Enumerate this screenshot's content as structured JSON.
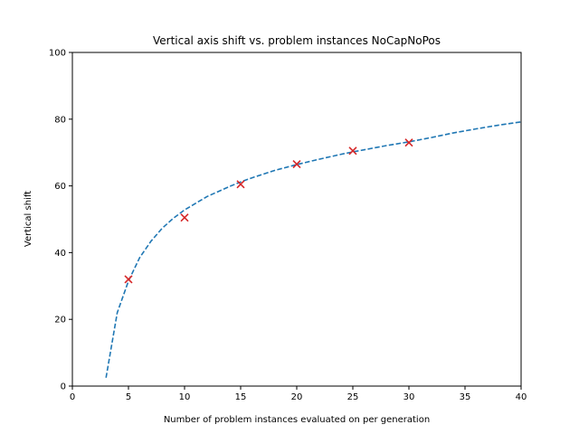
{
  "chart_data": {
    "type": "scatter",
    "title": "Vertical axis shift vs. problem instances NoCapNoPos",
    "xlabel": "Number of problem instances evaluated on per generation",
    "ylabel": "Vertical shift",
    "xlim": [
      0,
      40
    ],
    "ylim": [
      0,
      100
    ],
    "xticks": [
      0,
      5,
      10,
      15,
      20,
      25,
      30,
      35,
      40
    ],
    "yticks": [
      0,
      20,
      40,
      60,
      80,
      100
    ],
    "grid": false,
    "series": [
      {
        "kind": "scatter",
        "marker": "x",
        "color": "#d62728",
        "x": [
          5,
          10,
          15,
          20,
          25,
          30
        ],
        "y": [
          32,
          50.5,
          60.5,
          66.5,
          70.5,
          73
        ]
      },
      {
        "kind": "line",
        "style": "dashed",
        "color": "#1f77b4",
        "x": [
          3,
          4,
          5,
          6,
          7,
          8,
          9,
          10,
          12,
          14,
          15,
          16,
          18,
          20,
          22,
          24,
          25,
          26,
          28,
          30,
          32,
          34,
          36,
          38,
          40
        ],
        "y": [
          2.5,
          22,
          31.5,
          38.5,
          43.4,
          47.3,
          50.3,
          52.8,
          56.8,
          59.8,
          61.2,
          62.4,
          64.6,
          66.4,
          68.0,
          69.5,
          70.2,
          70.8,
          72.1,
          73.2,
          74.5,
          75.9,
          77.1,
          78.2,
          79.2
        ]
      }
    ]
  }
}
